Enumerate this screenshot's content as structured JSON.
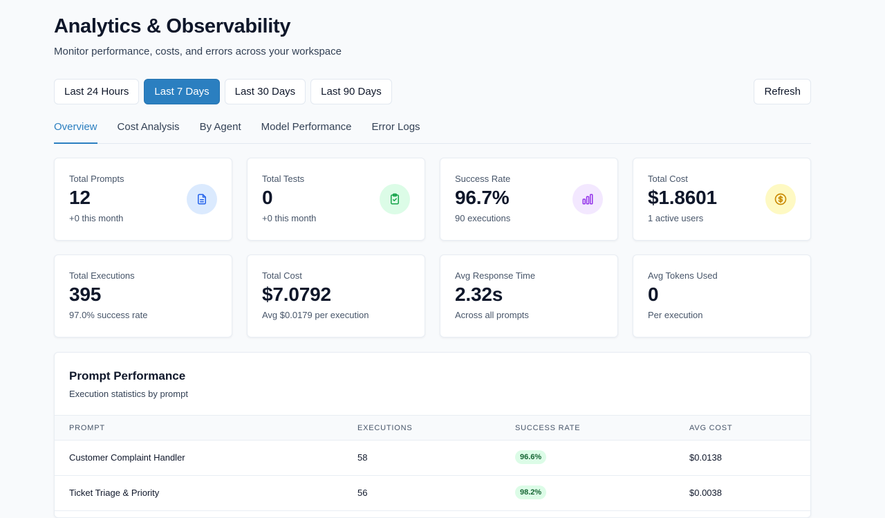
{
  "header": {
    "title": "Analytics & Observability",
    "subtitle": "Monitor performance, costs, and errors across your workspace"
  },
  "ranges": {
    "items": [
      "Last 24 Hours",
      "Last 7 Days",
      "Last 30 Days",
      "Last 90 Days"
    ],
    "selected": "Last 7 Days",
    "refresh_label": "Refresh"
  },
  "tabs": {
    "items": [
      "Overview",
      "Cost Analysis",
      "By Agent",
      "Model Performance",
      "Error Logs"
    ],
    "active": "Overview"
  },
  "stats_row1": [
    {
      "label": "Total Prompts",
      "value": "12",
      "sub": "+0 this month",
      "icon": "document-icon",
      "icon_bg": "#dbeafe",
      "icon_color": "#2563eb"
    },
    {
      "label": "Total Tests",
      "value": "0",
      "sub": "+0 this month",
      "icon": "clipboard-check-icon",
      "icon_bg": "#dcfce7",
      "icon_color": "#16a34a"
    },
    {
      "label": "Success Rate",
      "value": "96.7%",
      "sub": "90 executions",
      "icon": "bar-chart-icon",
      "icon_bg": "#f3e8ff",
      "icon_color": "#9333ea"
    },
    {
      "label": "Total Cost",
      "value": "$1.8601",
      "sub": "1 active users",
      "icon": "dollar-circle-icon",
      "icon_bg": "#fef9c3",
      "icon_color": "#ca8a04"
    }
  ],
  "stats_row2": [
    {
      "label": "Total Executions",
      "value": "395",
      "sub": "97.0% success rate"
    },
    {
      "label": "Total Cost",
      "value": "$7.0792",
      "sub": "Avg $0.0179 per execution"
    },
    {
      "label": "Avg Response Time",
      "value": "2.32s",
      "sub": "Across all prompts"
    },
    {
      "label": "Avg Tokens Used",
      "value": "0",
      "sub": "Per execution"
    }
  ],
  "prompt_performance": {
    "title": "Prompt Performance",
    "subtitle": "Execution statistics by prompt",
    "columns": [
      "PROMPT",
      "EXECUTIONS",
      "SUCCESS RATE",
      "AVG COST"
    ],
    "rows": [
      {
        "prompt": "Customer Complaint Handler",
        "executions": "58",
        "success_rate": "96.6%",
        "avg_cost": "$0.0138"
      },
      {
        "prompt": "Ticket Triage & Priority",
        "executions": "56",
        "success_rate": "98.2%",
        "avg_cost": "$0.0038"
      }
    ]
  }
}
